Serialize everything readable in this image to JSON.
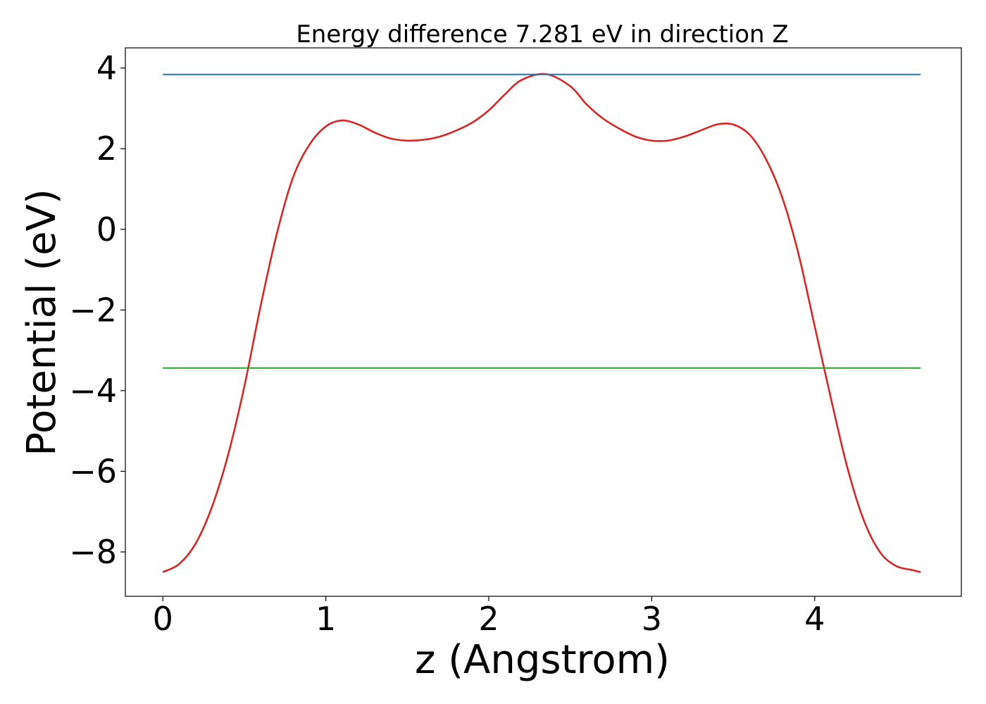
{
  "chart_data": {
    "type": "line",
    "title": "Energy difference 7.281 eV in direction Z",
    "xlabel": "z (Angstrom)",
    "ylabel": "Potential (eV)",
    "xlim": [
      -0.23,
      4.9
    ],
    "ylim": [
      -9.1,
      4.5
    ],
    "xticks": [
      0,
      1,
      2,
      3,
      4
    ],
    "xtick_labels": [
      "0",
      "1",
      "2",
      "3",
      "4"
    ],
    "yticks": [
      4,
      2,
      0,
      -2,
      -4,
      -6,
      -8
    ],
    "ytick_labels": [
      "4",
      "2",
      "0",
      "−2",
      "−4",
      "−6",
      "−8"
    ],
    "grid": false,
    "legend": null,
    "series": [
      {
        "color": "#d62728",
        "style": "curve",
        "x": [
          0.0,
          0.1,
          0.2,
          0.3,
          0.4,
          0.5,
          0.6,
          0.7,
          0.8,
          0.9,
          1.0,
          1.1,
          1.2,
          1.3,
          1.4,
          1.5,
          1.6,
          1.7,
          1.8,
          1.9,
          2.0,
          2.1,
          2.2,
          2.35,
          2.5,
          2.6,
          2.7,
          2.8,
          2.9,
          3.0,
          3.1,
          3.2,
          3.3,
          3.4,
          3.5,
          3.6,
          3.7,
          3.8,
          3.9,
          4.0,
          4.1,
          4.2,
          4.3,
          4.4,
          4.5,
          4.6,
          4.65
        ],
        "y": [
          -8.5,
          -8.3,
          -7.8,
          -6.9,
          -5.6,
          -3.9,
          -1.9,
          -0.1,
          1.3,
          2.1,
          2.55,
          2.7,
          2.6,
          2.4,
          2.25,
          2.2,
          2.22,
          2.3,
          2.45,
          2.65,
          2.95,
          3.35,
          3.7,
          3.85,
          3.55,
          3.1,
          2.75,
          2.5,
          2.3,
          2.2,
          2.2,
          2.3,
          2.45,
          2.6,
          2.6,
          2.35,
          1.75,
          0.8,
          -0.6,
          -2.4,
          -4.2,
          -5.9,
          -7.2,
          -8.0,
          -8.35,
          -8.45,
          -8.5
        ]
      },
      {
        "color": "#1f77b4",
        "style": "straight",
        "x": [
          0.0,
          4.65
        ],
        "y": [
          3.84,
          3.84
        ]
      },
      {
        "color": "#2ca02c",
        "style": "straight",
        "x": [
          0.0,
          4.65
        ],
        "y": [
          -3.44,
          -3.44
        ]
      }
    ]
  }
}
